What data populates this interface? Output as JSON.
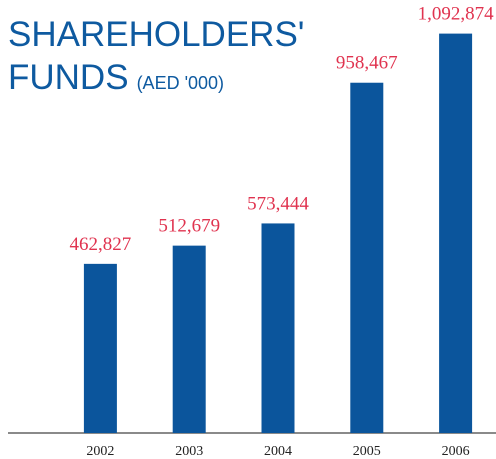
{
  "chart_data": {
    "type": "bar",
    "title": [
      "SHAREHOLDERS'",
      "FUNDS"
    ],
    "subtitle": "(AED '000)",
    "categories": [
      "2002",
      "2003",
      "2004",
      "2005",
      "2006"
    ],
    "values": [
      462827,
      512679,
      573444,
      958467,
      1092874
    ],
    "value_labels": [
      "462,827",
      "512,679",
      "573,444",
      "958,467",
      "1,092,874"
    ],
    "color": "#0b559c",
    "label_color": "#e0334f",
    "ylim": [
      0,
      1100000
    ]
  }
}
